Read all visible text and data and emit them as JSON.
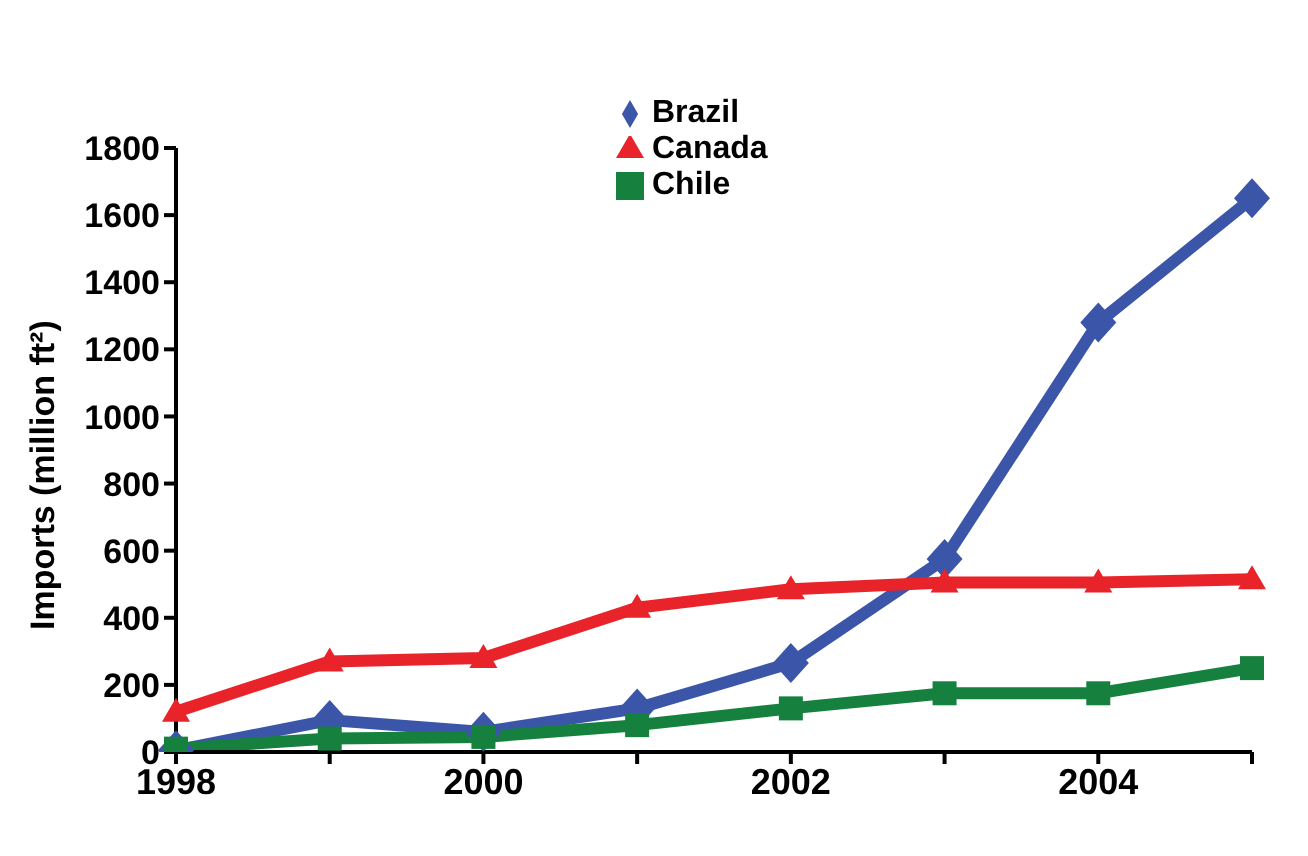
{
  "chart_data": {
    "type": "line",
    "ylabel": "Imports (million ft²)",
    "categories": [
      "1998",
      null,
      "2000",
      null,
      "2002",
      null,
      "2004",
      null
    ],
    "series": [
      {
        "name": "Brazil",
        "color": "#3b56a8",
        "marker": "diamond",
        "values": [
          5,
          95,
          60,
          130,
          265,
          575,
          1280,
          1650
        ]
      },
      {
        "name": "Chile",
        "color": "#16813f",
        "marker": "square",
        "values": [
          10,
          40,
          45,
          80,
          130,
          175,
          175,
          250
        ]
      },
      {
        "name": "Canada",
        "color": "#e8232a",
        "marker": "triangle",
        "values": [
          120,
          270,
          280,
          430,
          485,
          505,
          505,
          515
        ]
      }
    ],
    "ylim": [
      0,
      1800
    ],
    "yticks": [
      0,
      200,
      400,
      600,
      800,
      1000,
      1200,
      1400,
      1600,
      1800
    ],
    "grid": false,
    "legend": "top"
  }
}
